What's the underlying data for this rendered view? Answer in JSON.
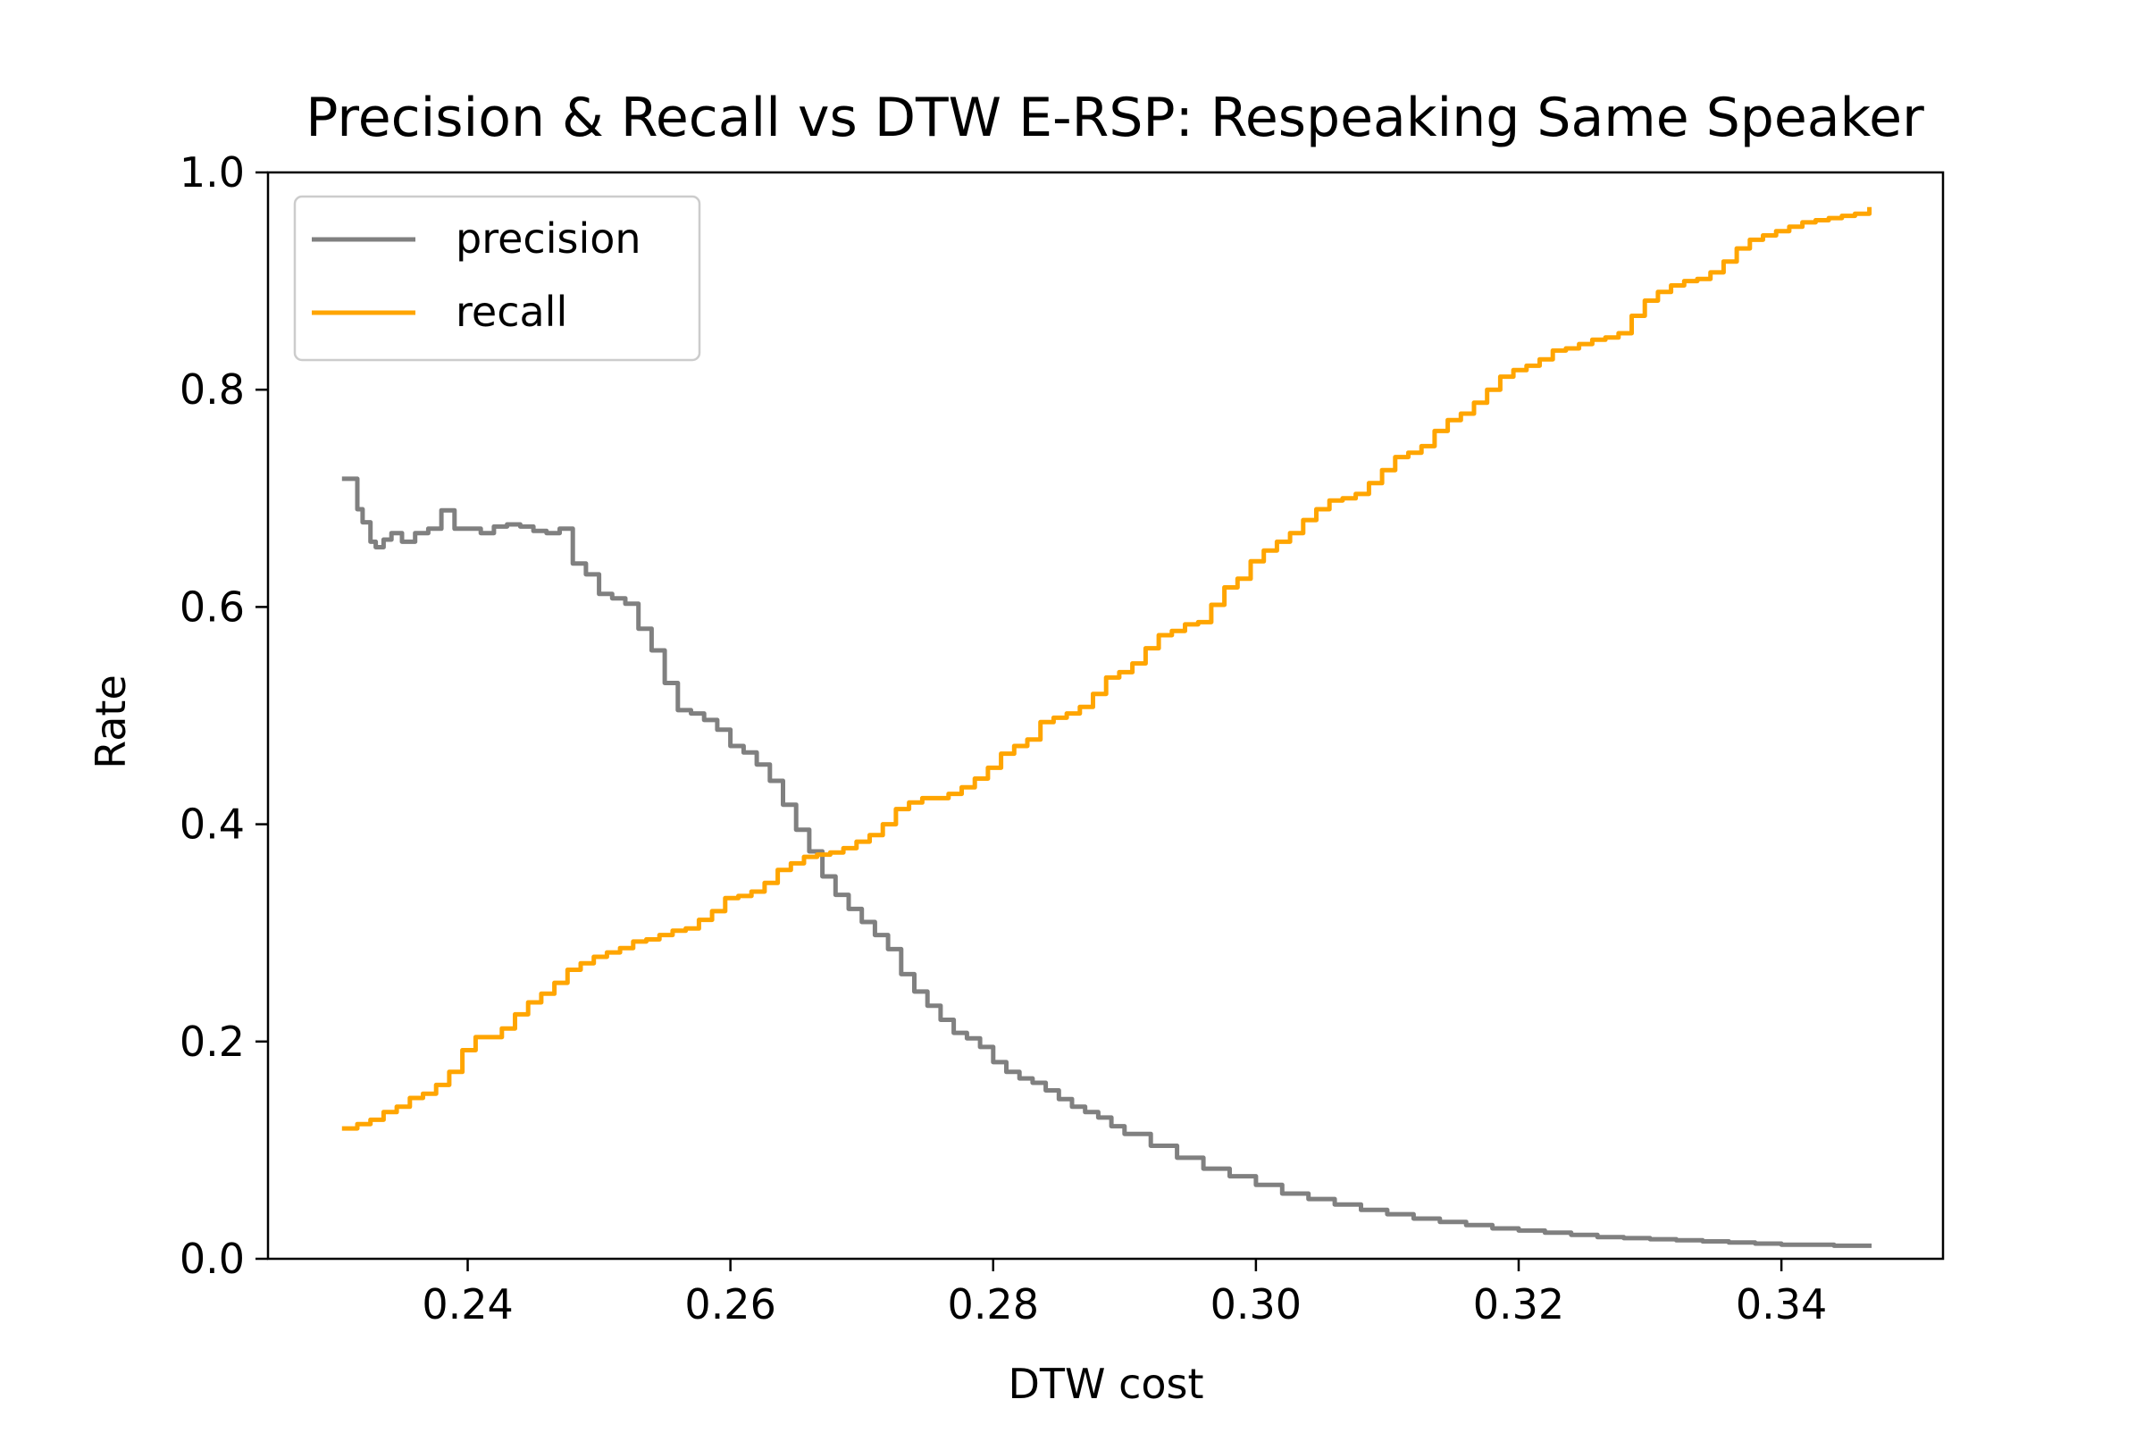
{
  "chart_data": {
    "type": "line",
    "title": "Precision & Recall vs DTW E-RSP: Respeaking Same Speaker",
    "xlabel": "DTW cost",
    "ylabel": "Rate",
    "xlim": [
      0.2248,
      0.3523
    ],
    "ylim": [
      0.0,
      1.0
    ],
    "xticks": [
      0.24,
      0.26,
      0.28,
      0.3,
      0.32,
      0.34
    ],
    "xtick_labels": [
      "0.24",
      "0.26",
      "0.28",
      "0.30",
      "0.32",
      "0.34"
    ],
    "yticks": [
      0.0,
      0.2,
      0.4,
      0.6,
      0.8,
      1.0
    ],
    "ytick_labels": [
      "0.0",
      "0.2",
      "0.4",
      "0.6",
      "0.8",
      "1.0"
    ],
    "grid": false,
    "legend_position": "upper-left",
    "series": [
      {
        "name": "precision",
        "color": "#808080",
        "x": [
          0.2306,
          0.2313,
          0.2316,
          0.232,
          0.2326,
          0.233,
          0.2336,
          0.2342,
          0.235,
          0.236,
          0.237,
          0.238,
          0.239,
          0.24,
          0.241,
          0.242,
          0.243,
          0.244,
          0.245,
          0.246,
          0.247,
          0.248,
          0.249,
          0.25,
          0.251,
          0.252,
          0.253,
          0.254,
          0.255,
          0.256,
          0.257,
          0.258,
          0.259,
          0.26,
          0.261,
          0.262,
          0.263,
          0.264,
          0.265,
          0.266,
          0.267,
          0.268,
          0.269,
          0.27,
          0.271,
          0.272,
          0.273,
          0.274,
          0.275,
          0.276,
          0.277,
          0.278,
          0.279,
          0.28,
          0.281,
          0.282,
          0.283,
          0.284,
          0.285,
          0.286,
          0.287,
          0.288,
          0.289,
          0.29,
          0.292,
          0.294,
          0.296,
          0.298,
          0.3,
          0.302,
          0.304,
          0.306,
          0.308,
          0.31,
          0.312,
          0.314,
          0.316,
          0.318,
          0.32,
          0.322,
          0.324,
          0.326,
          0.328,
          0.33,
          0.332,
          0.334,
          0.336,
          0.338,
          0.34,
          0.342,
          0.344,
          0.3467
        ],
        "values": [
          0.718,
          0.718,
          0.69,
          0.678,
          0.66,
          0.655,
          0.662,
          0.668,
          0.66,
          0.668,
          0.672,
          0.689,
          0.672,
          0.672,
          0.668,
          0.674,
          0.676,
          0.674,
          0.67,
          0.668,
          0.672,
          0.64,
          0.63,
          0.612,
          0.608,
          0.603,
          0.58,
          0.56,
          0.53,
          0.505,
          0.502,
          0.496,
          0.487,
          0.472,
          0.466,
          0.455,
          0.44,
          0.418,
          0.395,
          0.375,
          0.352,
          0.335,
          0.322,
          0.31,
          0.298,
          0.285,
          0.262,
          0.246,
          0.233,
          0.22,
          0.208,
          0.203,
          0.195,
          0.181,
          0.172,
          0.166,
          0.162,
          0.155,
          0.147,
          0.14,
          0.135,
          0.13,
          0.122,
          0.115,
          0.104,
          0.093,
          0.083,
          0.076,
          0.068,
          0.06,
          0.055,
          0.05,
          0.045,
          0.041,
          0.037,
          0.034,
          0.031,
          0.028,
          0.026,
          0.024,
          0.022,
          0.02,
          0.019,
          0.018,
          0.017,
          0.016,
          0.015,
          0.014,
          0.013,
          0.013,
          0.012,
          0.012
        ]
      },
      {
        "name": "recall",
        "color": "#ffa500",
        "x": [
          0.2306,
          0.2316,
          0.2326,
          0.2336,
          0.2346,
          0.2356,
          0.2366,
          0.2376,
          0.2386,
          0.2396,
          0.2406,
          0.2416,
          0.2426,
          0.2436,
          0.2446,
          0.2456,
          0.2466,
          0.2476,
          0.2486,
          0.2496,
          0.2506,
          0.2516,
          0.2526,
          0.2536,
          0.2546,
          0.2556,
          0.2566,
          0.2576,
          0.2586,
          0.2596,
          0.2606,
          0.2616,
          0.2626,
          0.2636,
          0.2646,
          0.2656,
          0.2666,
          0.2676,
          0.2686,
          0.2696,
          0.2706,
          0.2716,
          0.2726,
          0.2736,
          0.2746,
          0.2756,
          0.2766,
          0.2776,
          0.2786,
          0.2796,
          0.2806,
          0.2816,
          0.2826,
          0.2836,
          0.2846,
          0.2856,
          0.2866,
          0.2876,
          0.2886,
          0.2896,
          0.2906,
          0.2916,
          0.2926,
          0.2936,
          0.2946,
          0.2956,
          0.2966,
          0.2976,
          0.2986,
          0.2996,
          0.3006,
          0.3016,
          0.3026,
          0.3036,
          0.3046,
          0.3056,
          0.3066,
          0.3076,
          0.3086,
          0.3096,
          0.3106,
          0.3116,
          0.3126,
          0.3136,
          0.3146,
          0.3156,
          0.3166,
          0.3176,
          0.3186,
          0.3196,
          0.3206,
          0.3216,
          0.3226,
          0.3236,
          0.3246,
          0.3256,
          0.3266,
          0.3276,
          0.3286,
          0.3296,
          0.3306,
          0.3316,
          0.3326,
          0.3336,
          0.3346,
          0.3356,
          0.3366,
          0.3376,
          0.3386,
          0.3396,
          0.3406,
          0.3416,
          0.3426,
          0.3436,
          0.3446,
          0.3456,
          0.3467
        ],
        "values": [
          0.12,
          0.124,
          0.128,
          0.135,
          0.14,
          0.148,
          0.152,
          0.16,
          0.172,
          0.192,
          0.204,
          0.204,
          0.212,
          0.225,
          0.236,
          0.244,
          0.254,
          0.266,
          0.272,
          0.278,
          0.282,
          0.286,
          0.292,
          0.294,
          0.298,
          0.302,
          0.304,
          0.312,
          0.32,
          0.332,
          0.334,
          0.338,
          0.346,
          0.358,
          0.364,
          0.37,
          0.372,
          0.374,
          0.378,
          0.384,
          0.39,
          0.4,
          0.414,
          0.42,
          0.424,
          0.424,
          0.428,
          0.434,
          0.442,
          0.452,
          0.465,
          0.472,
          0.478,
          0.494,
          0.498,
          0.502,
          0.508,
          0.52,
          0.535,
          0.54,
          0.548,
          0.562,
          0.574,
          0.578,
          0.584,
          0.586,
          0.602,
          0.618,
          0.626,
          0.642,
          0.652,
          0.66,
          0.668,
          0.68,
          0.69,
          0.698,
          0.7,
          0.704,
          0.714,
          0.726,
          0.738,
          0.742,
          0.748,
          0.762,
          0.772,
          0.778,
          0.788,
          0.8,
          0.812,
          0.818,
          0.822,
          0.828,
          0.836,
          0.838,
          0.842,
          0.846,
          0.848,
          0.852,
          0.868,
          0.882,
          0.89,
          0.896,
          0.9,
          0.902,
          0.908,
          0.918,
          0.93,
          0.938,
          0.942,
          0.946,
          0.95,
          0.954,
          0.956,
          0.958,
          0.96,
          0.962,
          0.966
        ]
      }
    ]
  }
}
